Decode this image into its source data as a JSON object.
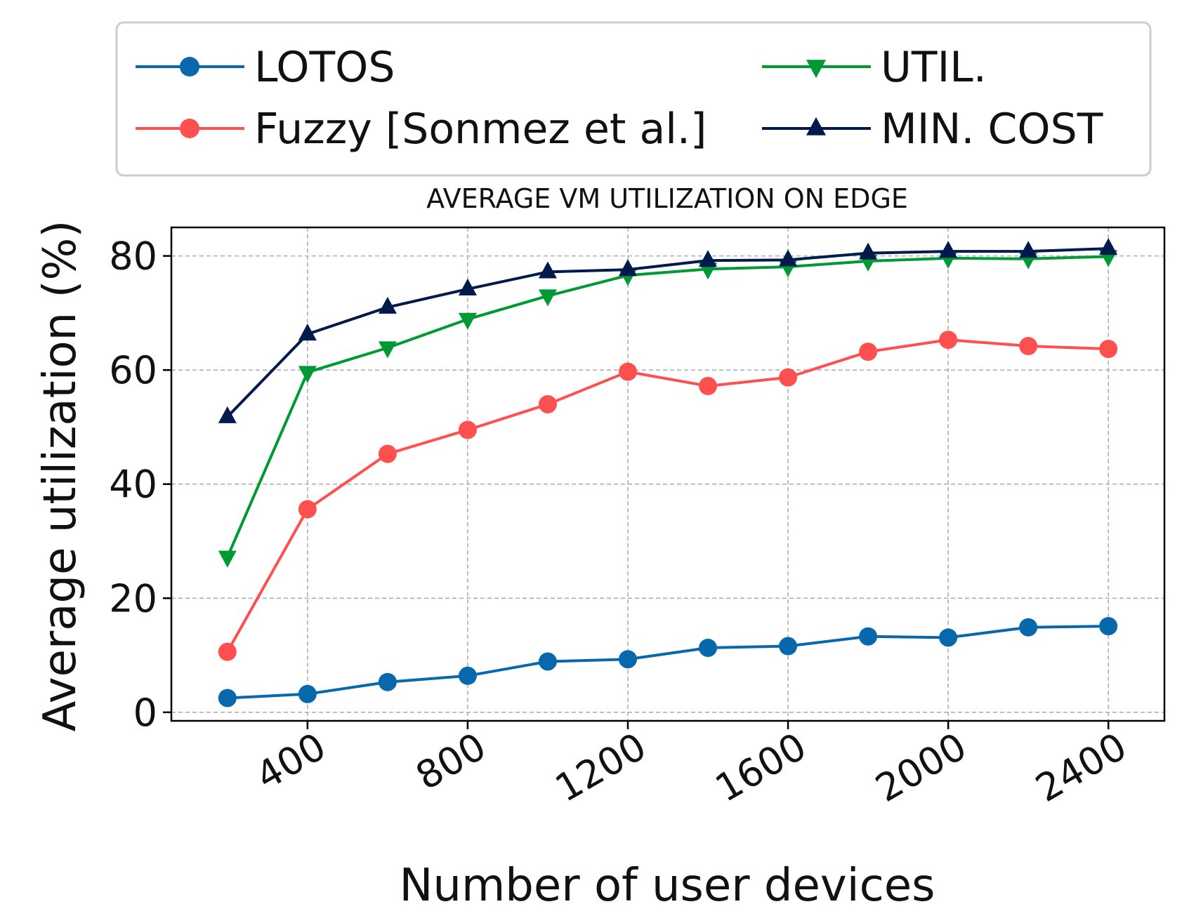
{
  "chart_data": {
    "type": "line",
    "title": "AVERAGE VM UTILIZATION ON EDGE",
    "xlabel": "Number of user devices",
    "ylabel": "Average utilization (%)",
    "x": [
      200,
      400,
      600,
      800,
      1000,
      1200,
      1400,
      1600,
      1800,
      2000,
      2200,
      2400
    ],
    "xlim": [
      60,
      2540
    ],
    "ylim": [
      -1.5,
      85
    ],
    "xticks": [
      400,
      800,
      1200,
      1600,
      2000,
      2400
    ],
    "yticks": [
      0,
      20,
      40,
      60,
      80
    ],
    "xtick_labels": [
      "400",
      "800",
      "1200",
      "1600",
      "2000",
      "2400"
    ],
    "ytick_labels": [
      "0",
      "20",
      "40",
      "60",
      "80"
    ],
    "grid": true,
    "legend_position": "top",
    "series": [
      {
        "name": "LOTOS",
        "color": "#0868ac",
        "marker": "circle",
        "values": [
          2.5,
          3.2,
          5.3,
          6.4,
          8.9,
          9.3,
          11.3,
          11.6,
          13.3,
          13.1,
          14.9,
          15.1
        ]
      },
      {
        "name": "Fuzzy [Sonmez et al.]",
        "color": "#ff5050",
        "marker": "circle",
        "values": [
          10.6,
          35.6,
          45.3,
          49.5,
          54.0,
          59.7,
          57.2,
          58.7,
          63.2,
          65.3,
          64.2,
          63.7
        ]
      },
      {
        "name": "UTIL.",
        "color": "#009933",
        "marker": "triangle-down",
        "values": [
          27.2,
          59.6,
          63.9,
          68.9,
          73.0,
          76.6,
          77.7,
          78.1,
          79.1,
          79.6,
          79.5,
          79.9
        ]
      },
      {
        "name": "MIN. COST",
        "color": "#001a4d",
        "marker": "triangle-up",
        "values": [
          51.8,
          66.3,
          71.0,
          74.2,
          77.2,
          77.6,
          79.2,
          79.3,
          80.5,
          80.8,
          80.8,
          81.3
        ]
      }
    ]
  }
}
